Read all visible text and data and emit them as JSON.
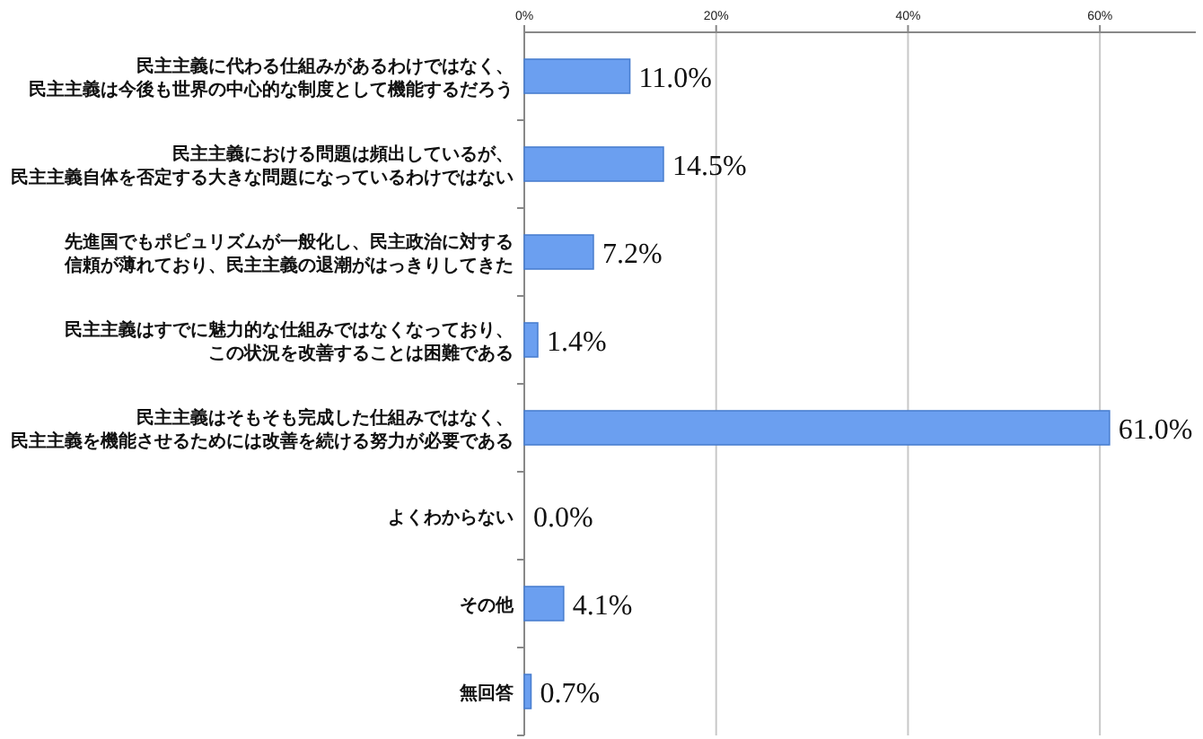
{
  "chart_data": {
    "type": "bar",
    "orientation": "horizontal",
    "categories": [
      "民主主義に代わる仕組みがあるわけではなく、民主主義は今後も世界の中心的な制度として機能するだろう",
      "民主主義における問題は頻出しているが、民主主義自体を否定する大きな問題になっているわけではない",
      "先進国でもポピュリズムが一般化し、民主政治に対する信頼が薄れており、民主主義の退潮がはっきりしてきた",
      "民主主義はすでに魅力的な仕組みではなくなっており、この状況を改善することは困難である",
      "民主主義はそもそも完成した仕組みではなく、民主主義を機能させるためには改善を続ける努力が必要である",
      "よくわからない",
      "その他",
      "無回答"
    ],
    "values": [
      11.0,
      14.5,
      7.2,
      1.4,
      61.0,
      0.0,
      4.1,
      0.7
    ],
    "value_labels": [
      "11.0%",
      "14.5%",
      "7.2%",
      "1.4%",
      "61.0%",
      "0.0%",
      "4.1%",
      "0.7%"
    ],
    "color": "#6b9ff0",
    "xlim": [
      0,
      70
    ],
    "xticks": [
      {
        "value": 0,
        "label": "0%"
      },
      {
        "value": 20,
        "label": "20%"
      },
      {
        "value": 40,
        "label": "40%"
      },
      {
        "value": 60,
        "label": "60%"
      }
    ],
    "grid": "x"
  }
}
